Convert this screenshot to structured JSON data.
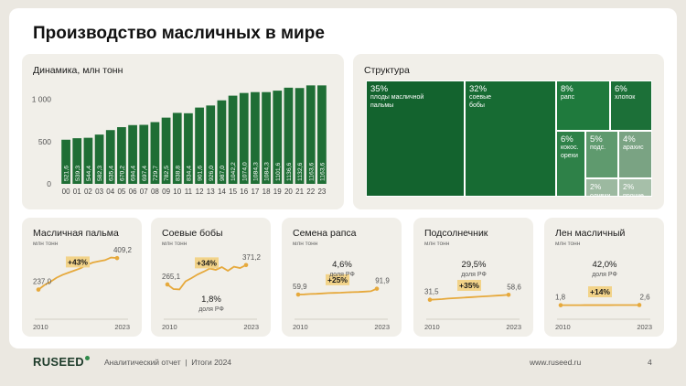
{
  "page_title": "Производство масличных в мире",
  "colors": {
    "dark_green": "#13632e",
    "bar_green": "#1f6e35",
    "accent_orange": "#e6a93c",
    "badge_bg": "#f2d389"
  },
  "chart_data": [
    {
      "type": "bar",
      "title": "Динамика, млн тонн",
      "categories": [
        "00",
        "01",
        "02",
        "03",
        "04",
        "05",
        "06",
        "07",
        "08",
        "09",
        "10",
        "11",
        "12",
        "13",
        "14",
        "15",
        "16",
        "17",
        "18",
        "19",
        "20",
        "21",
        "22",
        "23"
      ],
      "values": [
        521.6,
        539.3,
        544.4,
        582.3,
        635.4,
        670.2,
        694.4,
        697.4,
        729.7,
        782.5,
        838.8,
        834.4,
        901.6,
        926.0,
        987.0,
        1042.2,
        1074.0,
        1084.3,
        1084.3,
        1101.6,
        1136.6,
        1132.6,
        1163.6,
        1163.6
      ],
      "value_labels": [
        "521,6",
        "539,3",
        "544,4",
        "582,3",
        "635,4",
        "670,2",
        "694,4",
        "697,4",
        "729,7",
        "782,5",
        "838,8",
        "834,4",
        "901,6",
        "926,0",
        "987,0",
        "1042,2",
        "1074,0",
        "1084,3",
        "1084,3",
        "1101,6",
        "1136,6",
        "1132,6",
        "1163,6",
        "1163,6"
      ],
      "y_ticks": [
        "1 000",
        "500",
        "0"
      ],
      "ylim": [
        0,
        1200
      ]
    },
    {
      "type": "treemap",
      "title": "Структура",
      "items": [
        {
          "pct": "35%",
          "label": "плоды масличной пальмы",
          "value": 35
        },
        {
          "pct": "32%",
          "label": "соевые бобы",
          "value": 32
        },
        {
          "pct": "8%",
          "label": "рапс",
          "value": 8
        },
        {
          "pct": "6%",
          "label": "хлопок",
          "value": 6
        },
        {
          "pct": "6%",
          "label": "кокос. орехи",
          "value": 6
        },
        {
          "pct": "5%",
          "label": "подс.",
          "value": 5
        },
        {
          "pct": "4%",
          "label": "арахис",
          "value": 4
        },
        {
          "pct": "2%",
          "label": "оливки",
          "value": 2
        },
        {
          "pct": "2%",
          "label": "прочие",
          "value": 2
        }
      ]
    },
    {
      "type": "line",
      "title": "Масличная пальма",
      "subtitle": "млн тонн",
      "start_label": "237,0",
      "end_label": "409,2",
      "badge": "+43%",
      "x_start": "2010",
      "x_end": "2023",
      "values": [
        237.0,
        262,
        280,
        302,
        318,
        330,
        342,
        354,
        372,
        385,
        392,
        398,
        412,
        409.2
      ],
      "ylim": [
        150,
        450
      ]
    },
    {
      "type": "line",
      "title": "Соевые бобы",
      "subtitle": "млн тонн",
      "start_label": "265,1",
      "end_label": "371,2",
      "badge": "+34%",
      "share_value": "1,8%",
      "share_label": "доля РФ",
      "x_start": "2010",
      "x_end": "2023",
      "values": [
        265.1,
        240,
        238,
        282,
        300,
        320,
        335,
        352,
        345,
        360,
        340,
        362,
        355,
        371.2
      ],
      "ylim": [
        150,
        450
      ]
    },
    {
      "type": "line",
      "title": "Семена рапса",
      "subtitle": "млн тонн",
      "start_label": "59,9",
      "end_label": "91,9",
      "badge": "+25%",
      "share_value": "4,6%",
      "share_label": "доля РФ",
      "x_start": "2010",
      "x_end": "2023",
      "values": [
        59.9,
        61,
        63,
        64,
        66,
        68,
        69,
        70,
        72,
        73,
        74,
        76,
        78,
        91.9
      ],
      "ylim": [
        0,
        300
      ]
    },
    {
      "type": "line",
      "title": "Подсолнечник",
      "subtitle": "млн тонн",
      "start_label": "31,5",
      "end_label": "58,6",
      "badge": "+35%",
      "share_value": "29,5%",
      "share_label": "доля РФ",
      "x_start": "2010",
      "x_end": "2023",
      "values": [
        31.5,
        33,
        35,
        38,
        40,
        42,
        44,
        46,
        48,
        50,
        52,
        54,
        56,
        58.6
      ],
      "ylim": [
        0,
        300
      ]
    },
    {
      "type": "line",
      "title": "Лен масличный",
      "subtitle": "млн тонн",
      "start_label": "1,8",
      "end_label": "2,6",
      "badge": "+14%",
      "share_value": "42,0%",
      "share_label": "доля РФ",
      "x_start": "2010",
      "x_end": "2023",
      "values": [
        1.8,
        1.9,
        2.0,
        2.0,
        2.1,
        2.2,
        2.2,
        2.3,
        2.3,
        2.4,
        2.4,
        2.5,
        2.5,
        2.6
      ],
      "ylim": [
        0,
        300
      ]
    }
  ],
  "footer": {
    "logo": "RUSEED",
    "text": "Аналитический отчет  |  Итоги 2024",
    "url": "www.ruseed.ru",
    "page": "4"
  }
}
